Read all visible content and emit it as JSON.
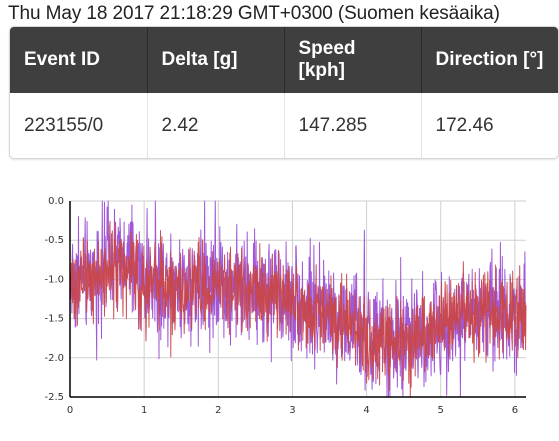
{
  "timestamp": "Thu May 18 2017 21:18:29 GMT+0300 (Suomen kesäaika)",
  "table": {
    "headers": [
      "Event ID",
      "Delta [g]",
      "Speed [kph]",
      "Direction [°]"
    ],
    "row": [
      "223155/0",
      "2.42",
      "147.285",
      "172.46"
    ]
  },
  "chart_data": {
    "type": "line",
    "xlim": [
      0,
      6.15
    ],
    "ylim": [
      -2.5,
      0.0
    ],
    "x_ticks": [
      "0",
      "1",
      "2",
      "3",
      "4",
      "5",
      "6"
    ],
    "y_ticks": [
      "0.0",
      "-0.5",
      "-1.0",
      "-1.5",
      "-2.0",
      "-2.5"
    ],
    "grid": true,
    "sample_step": 0.005,
    "series": [
      {
        "color": "#9b4fd6",
        "trend": [
          [
            0.0,
            -1.0
          ],
          [
            0.2,
            -0.98
          ],
          [
            0.4,
            -0.85
          ],
          [
            0.6,
            -0.75
          ],
          [
            0.8,
            -0.85
          ],
          [
            1.0,
            -1.0
          ],
          [
            1.3,
            -1.05
          ],
          [
            1.6,
            -1.05
          ],
          [
            1.8,
            -1.0
          ],
          [
            2.0,
            -1.05
          ],
          [
            2.3,
            -1.1
          ],
          [
            2.6,
            -1.12
          ],
          [
            3.0,
            -1.25
          ],
          [
            3.3,
            -1.35
          ],
          [
            3.5,
            -1.45
          ],
          [
            3.8,
            -1.6
          ],
          [
            4.0,
            -1.75
          ],
          [
            4.3,
            -1.85
          ],
          [
            4.6,
            -1.75
          ],
          [
            4.9,
            -1.7
          ],
          [
            5.2,
            -1.5
          ],
          [
            5.5,
            -1.45
          ],
          [
            5.8,
            -1.4
          ],
          [
            6.15,
            -1.4
          ]
        ],
        "amplitude": 0.34
      },
      {
        "color": "#c9474a",
        "trend": [
          [
            0.0,
            -1.05
          ],
          [
            0.2,
            -1.02
          ],
          [
            0.4,
            -0.95
          ],
          [
            0.6,
            -0.88
          ],
          [
            0.8,
            -0.9
          ],
          [
            1.0,
            -1.05
          ],
          [
            1.3,
            -1.1
          ],
          [
            1.6,
            -1.08
          ],
          [
            1.8,
            -1.05
          ],
          [
            2.0,
            -1.1
          ],
          [
            2.3,
            -1.12
          ],
          [
            2.6,
            -1.15
          ],
          [
            3.0,
            -1.28
          ],
          [
            3.3,
            -1.4
          ],
          [
            3.5,
            -1.5
          ],
          [
            3.8,
            -1.62
          ],
          [
            4.0,
            -1.78
          ],
          [
            4.3,
            -1.85
          ],
          [
            4.6,
            -1.78
          ],
          [
            4.9,
            -1.65
          ],
          [
            5.2,
            -1.45
          ],
          [
            5.5,
            -1.45
          ],
          [
            5.8,
            -1.4
          ],
          [
            6.15,
            -1.4
          ]
        ],
        "amplitude": 0.26
      }
    ]
  }
}
